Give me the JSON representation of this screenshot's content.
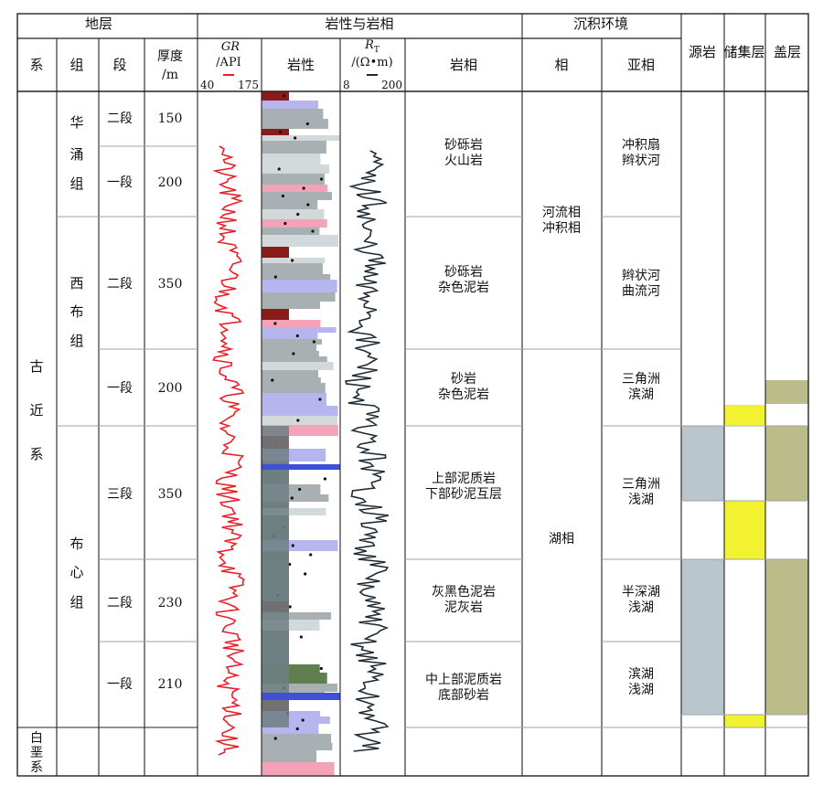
{
  "headers": {
    "stratigraphy": "地层",
    "lithology_group": "岩性与岩相",
    "environment": "沉积环境",
    "system": "系",
    "formation": "组",
    "member": "段",
    "thickness_line1": "厚度",
    "thickness_line2": "/m",
    "gr_title": "GR",
    "gr_unit": "/API",
    "gr_min": "40",
    "gr_max": "175",
    "lithology": "岩性",
    "rt_title": "R",
    "rt_sub": "T",
    "rt_unit": "/(Ω•m)",
    "rt_min": "8",
    "rt_max": "200",
    "lithofacies": "岩相",
    "facies": "相",
    "subfacies": "亚相",
    "source_rock": "源岩",
    "reservoir": "储集层",
    "cap_rock": "盖层"
  },
  "systems": [
    {
      "name": "古近系",
      "chars": [
        "古",
        "近",
        "系"
      ]
    },
    {
      "name": "白垩系",
      "chars": [
        "白",
        "垩",
        "系"
      ]
    }
  ],
  "formations": [
    {
      "name": "华涌组",
      "chars": [
        "华",
        "涌",
        "组"
      ]
    },
    {
      "name": "西布组",
      "chars": [
        "西",
        "布",
        "组"
      ]
    },
    {
      "name": "布心组",
      "chars": [
        "布",
        "心",
        "组"
      ]
    }
  ],
  "members": [
    {
      "label": "二段",
      "thickness": "150"
    },
    {
      "label": "一段",
      "thickness": "200"
    },
    {
      "label": "二段",
      "thickness": "350"
    },
    {
      "label": "一段",
      "thickness": "200"
    },
    {
      "label": "三段",
      "thickness": "350"
    },
    {
      "label": "二段",
      "thickness": "230"
    },
    {
      "label": "一段",
      "thickness": "210"
    }
  ],
  "lithofacies": [
    [
      "砂砾岩",
      "火山岩"
    ],
    [
      "砂砾岩",
      "杂色泥岩"
    ],
    [
      "砂岩",
      "杂色泥岩"
    ],
    [
      "上部泥质岩",
      "下部砂泥互层"
    ],
    [
      "灰黑色泥岩",
      "泥灰岩"
    ],
    [
      "中上部泥质岩",
      "底部砂岩"
    ]
  ],
  "facies": [
    [
      "河流相",
      "冲积相"
    ],
    [
      "湖相"
    ]
  ],
  "subfacies": [
    [
      "冲积扇",
      "辫状河"
    ],
    [
      "辫状河",
      "曲流河"
    ],
    [
      "三角洲",
      "滨湖"
    ],
    [
      "三角洲",
      "浅湖"
    ],
    [
      "半深湖",
      "浅湖"
    ],
    [
      "滨湖",
      "浅湖"
    ]
  ],
  "colors": {
    "grid": "#222222",
    "grid_light": "#9aa3ad",
    "gr_curve": "#e8202a",
    "rt_curve": "#1e2a33",
    "source_rock": "#b9c6cc",
    "reservoir": "#f2f230",
    "cap_rock": "#bcbb8a",
    "lith_gray": "#a9b0b3",
    "lith_light": "#d3d8da",
    "lith_dark": "#6f7f82",
    "lith_red": "#8a1b1b",
    "lith_purple": "#b7b5ee",
    "lith_pink": "#f2a3b8",
    "lith_green": "#5f7f4f"
  }
}
